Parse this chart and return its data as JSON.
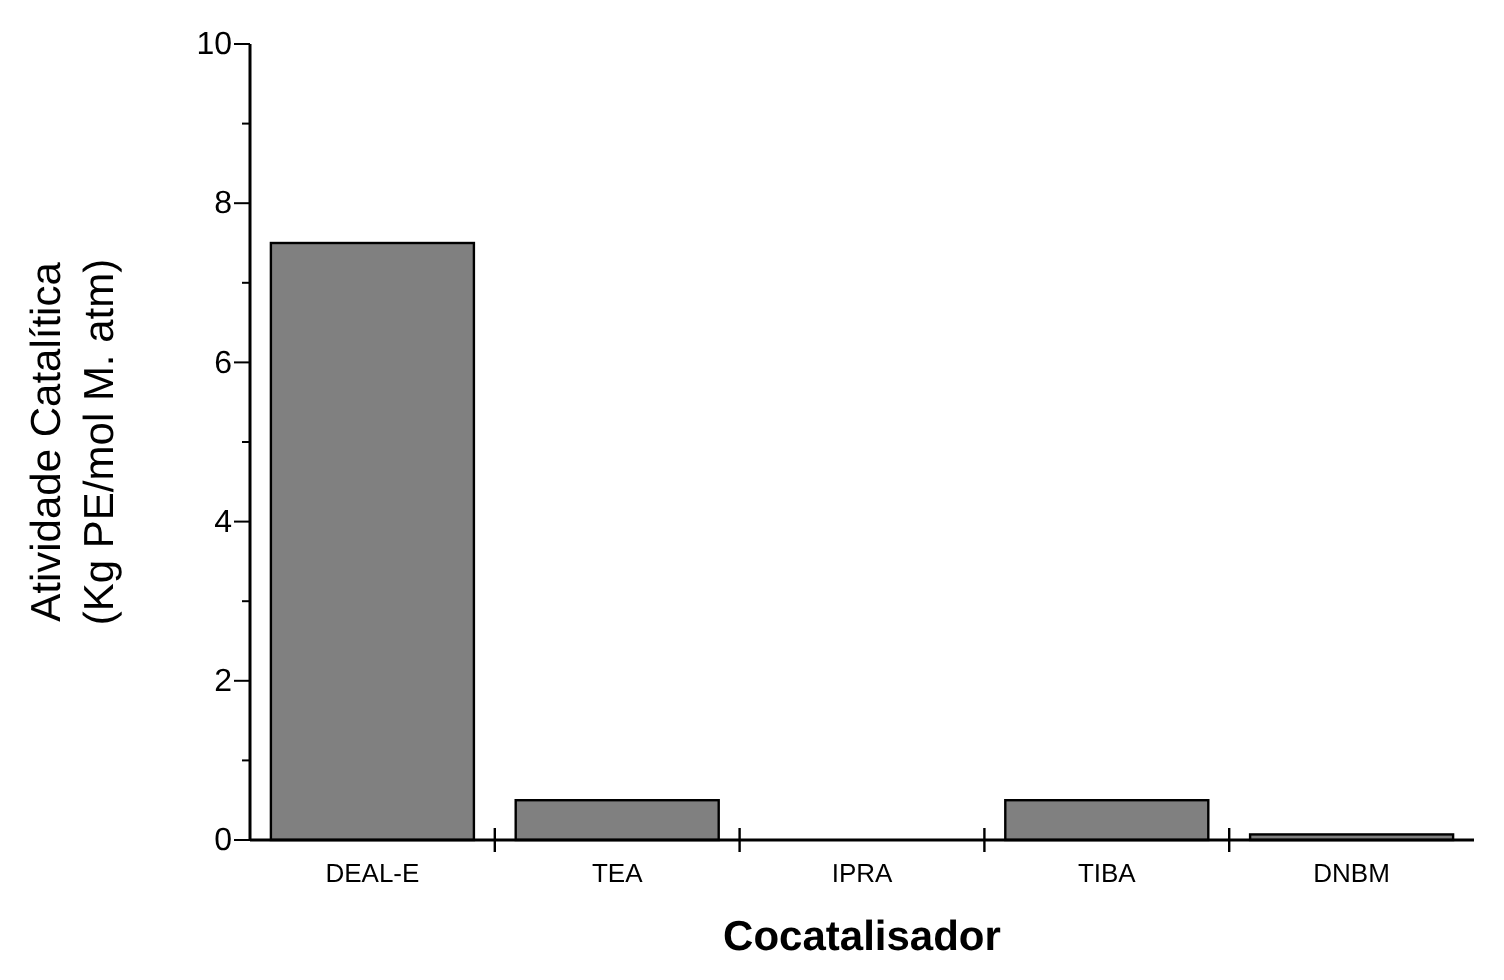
{
  "chart_data": {
    "type": "bar",
    "xlabel": "Cocatalisador",
    "ylabel": "Atividade Catalítica\n(Kg PE/mol M. atm)",
    "categories": [
      "DEAL-E",
      "TEA",
      "IPRA",
      "TIBA",
      "DNBM"
    ],
    "values": [
      7.5,
      0.5,
      0,
      0.5,
      0.07
    ],
    "color": "#808080",
    "ylim": [
      0,
      10
    ],
    "yticks": [
      0,
      {
        "value": 1,
        "label": null
      },
      2,
      {
        "value": 3,
        "label": null
      },
      4,
      {
        "value": 5,
        "label": null
      },
      6,
      {
        "value": 7,
        "label": null
      },
      8,
      {
        "value": 9,
        "label": null
      },
      10
    ],
    "grid": false
  }
}
